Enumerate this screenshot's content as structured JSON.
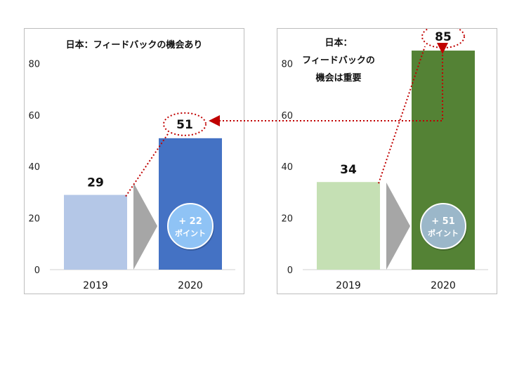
{
  "chart_data": [
    {
      "type": "bar",
      "title": "日本：フィードバックの機会あり",
      "categories": [
        "2019",
        "2020"
      ],
      "values": [
        29,
        51
      ],
      "data_labels": [
        "29",
        "51"
      ],
      "ylim": [
        0,
        85
      ],
      "yticks": [
        "0",
        "20",
        "40",
        "60",
        "80"
      ],
      "grid": false,
      "colors": [
        "#b4c7e7",
        "#4472c4"
      ],
      "badge": "+ 22\nポイント",
      "badge_color": "#8fc3f5"
    },
    {
      "type": "bar",
      "title": "日本：\nフィードバックの\n機会は重要",
      "categories": [
        "2019",
        "2020"
      ],
      "values": [
        34,
        85
      ],
      "data_labels": [
        "34",
        "85"
      ],
      "ylim": [
        0,
        85
      ],
      "yticks": [
        "0",
        "20",
        "40",
        "60",
        "80"
      ],
      "grid": false,
      "colors": [
        "#c5e0b4",
        "#548235"
      ],
      "badge": "+ 51\nポイント",
      "badge_color": "#9bb7c9"
    }
  ]
}
